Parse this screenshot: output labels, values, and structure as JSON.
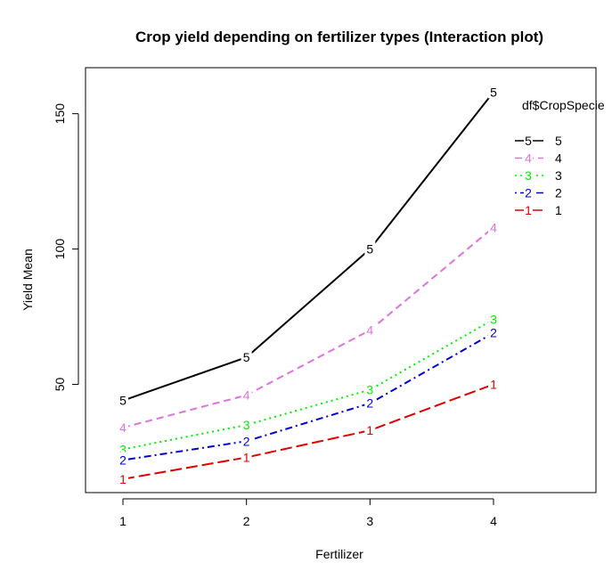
{
  "chart_data": {
    "type": "line",
    "title": "Crop yield depending on fertilizer types (Interaction plot)",
    "xlabel": "Fertilizer",
    "ylabel": "Yield Mean",
    "categories": [
      "1",
      "2",
      "3",
      "4"
    ],
    "yticks": [
      "50",
      "100",
      "150"
    ],
    "ylim": [
      10,
      167
    ],
    "grid": false,
    "legend": {
      "title": "df$CropSpecie",
      "placement": "top-right",
      "order": [
        "5",
        "4",
        "3",
        "2",
        "1"
      ]
    },
    "series": [
      {
        "name": "5",
        "color": "#000000",
        "dash": "solid",
        "values": [
          44,
          60,
          100,
          158
        ]
      },
      {
        "name": "4",
        "color": "#DF72DF",
        "dash": "dashed",
        "values": [
          34,
          46,
          70,
          108
        ]
      },
      {
        "name": "3",
        "color": "#00EE00",
        "dash": "dotted",
        "values": [
          26,
          35,
          48,
          74
        ]
      },
      {
        "name": "2",
        "color": "#0000CD",
        "dash": "dotdash",
        "values": [
          22,
          29,
          43,
          69
        ]
      },
      {
        "name": "1",
        "color": "#DD0000",
        "dash": "longdash",
        "values": [
          15,
          23,
          33,
          50
        ]
      }
    ]
  }
}
